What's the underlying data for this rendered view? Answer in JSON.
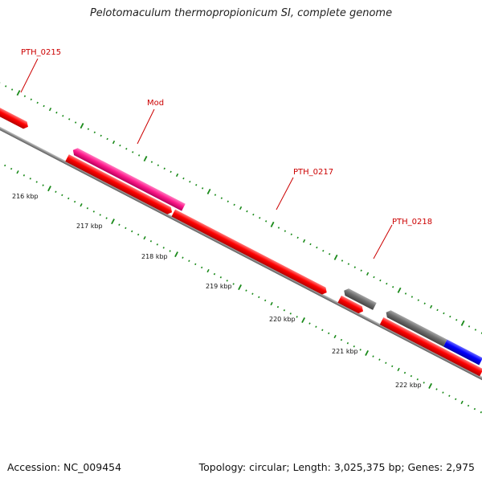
{
  "title": "Pelotomaculum thermopropionicum SI, complete genome",
  "footer": {
    "accession": "Accession: NC_009454",
    "summary": "Topology: circular; Length: 3,025,375 bp; Genes: 2,975"
  },
  "colors": {
    "backbone": "#8c8c8c",
    "tick": "#1a8a1a",
    "label_text": "#cc0000",
    "cds_red": "#ff0000",
    "cds_pink": "#ff1a8c",
    "cds_gray": "#707070",
    "cds_blue": "#0000ff"
  },
  "scale_labels": [
    "216 kbp",
    "217 kbp",
    "218 kbp",
    "219 kbp",
    "220 kbp",
    "221 kbp",
    "222 kbp"
  ],
  "gene_labels": [
    "PTH_0215",
    "Mod",
    "PTH_0217",
    "PTH_0218"
  ],
  "features": [
    {
      "name": "cds-left-edge",
      "track": "upper",
      "color": "cds_red"
    },
    {
      "name": "cds-mod",
      "track": "upper",
      "color": "cds_pink"
    },
    {
      "name": "cds-216-217",
      "track": "lower",
      "color": "cds_red"
    },
    {
      "name": "cds-pth0217",
      "track": "lower",
      "color": "cds_red"
    },
    {
      "name": "cds-pth0218-gray",
      "track": "upper",
      "color": "cds_gray"
    },
    {
      "name": "cds-pth0218-red",
      "track": "lower",
      "color": "cds_red"
    },
    {
      "name": "cds-right-gray",
      "track": "upper",
      "color": "cds_gray"
    },
    {
      "name": "cds-right-blue",
      "track": "upper",
      "color": "cds_blue"
    },
    {
      "name": "cds-right-red",
      "track": "lower",
      "color": "cds_red"
    }
  ]
}
